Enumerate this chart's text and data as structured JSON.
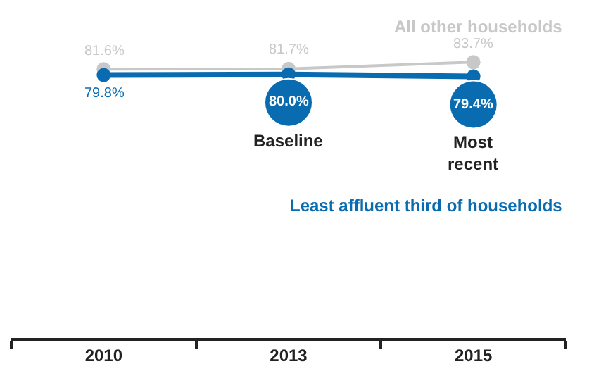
{
  "chart_data": {
    "type": "line",
    "categories": [
      "2010",
      "2013",
      "2015"
    ],
    "series": [
      {
        "name": "All other households",
        "color": "#c8c8c8",
        "values": [
          81.6,
          81.7,
          83.7
        ],
        "value_labels": [
          "81.6%",
          "81.7%",
          "83.7%"
        ]
      },
      {
        "name": "Least affluent third of households",
        "color": "#0a6cb0",
        "values": [
          79.8,
          80.0,
          79.4
        ],
        "value_labels": [
          "79.8%",
          "80.0%",
          "79.4%"
        ]
      }
    ],
    "annotations": [
      "Baseline",
      "Most recent"
    ],
    "marker": "circle",
    "legend": false,
    "tick_labels": "x"
  }
}
